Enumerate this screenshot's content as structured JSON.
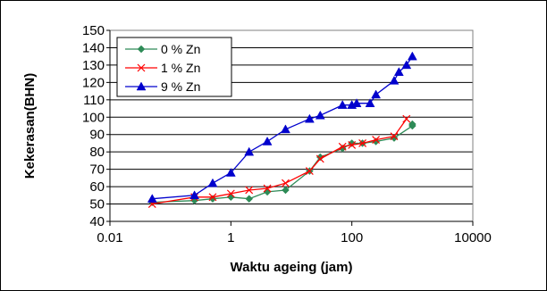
{
  "chart_data": {
    "type": "line",
    "title": "",
    "xlabel": "Waktu ageing (jam)",
    "ylabel": "Kekerasan(BHN)",
    "x_scale": "log",
    "xlim": [
      0.01,
      10000
    ],
    "ylim": [
      40,
      150
    ],
    "x_ticks": [
      0.01,
      1,
      100,
      10000
    ],
    "x_tick_labels": [
      "0.01",
      "1",
      "100",
      "10000"
    ],
    "y_ticks": [
      40,
      50,
      60,
      70,
      80,
      90,
      100,
      110,
      120,
      130,
      140,
      150
    ],
    "y_tick_labels": [
      "40",
      "50",
      "60",
      "70",
      "80",
      "90",
      "100",
      "110",
      "120",
      "130",
      "140",
      "150"
    ],
    "grid": "horizontal",
    "legend_position": "top-left",
    "series": [
      {
        "name": "0 % Zn",
        "color": "#2E8B57",
        "marker": "diamond",
        "x": [
          0.05,
          0.25,
          0.5,
          1,
          2,
          4,
          8,
          20,
          30,
          70,
          100,
          150,
          250,
          500,
          1000,
          1000
        ],
        "y": [
          51,
          52,
          53,
          54,
          53,
          57,
          58,
          69,
          77,
          82,
          85,
          85,
          86,
          88,
          95,
          96
        ]
      },
      {
        "name": "1 % Zn",
        "color": "#FF0000",
        "marker": "x",
        "x": [
          0.05,
          0.25,
          0.5,
          1,
          2,
          4,
          8,
          20,
          30,
          70,
          100,
          150,
          250,
          500,
          800
        ],
        "y": [
          50,
          54,
          54,
          56,
          58,
          59,
          62,
          69,
          76,
          83,
          84,
          85,
          87,
          89,
          99
        ]
      },
      {
        "name": "9 % Zn",
        "color": "#0000CD",
        "marker": "triangle",
        "x": [
          0.05,
          0.25,
          0.5,
          1,
          2,
          4,
          8,
          20,
          30,
          70,
          100,
          120,
          200,
          250,
          500,
          600,
          800,
          1000
        ],
        "y": [
          53,
          55,
          62,
          68,
          80,
          86,
          93,
          99,
          101,
          107,
          107,
          108,
          108,
          113,
          121,
          126,
          130,
          135
        ]
      }
    ]
  }
}
